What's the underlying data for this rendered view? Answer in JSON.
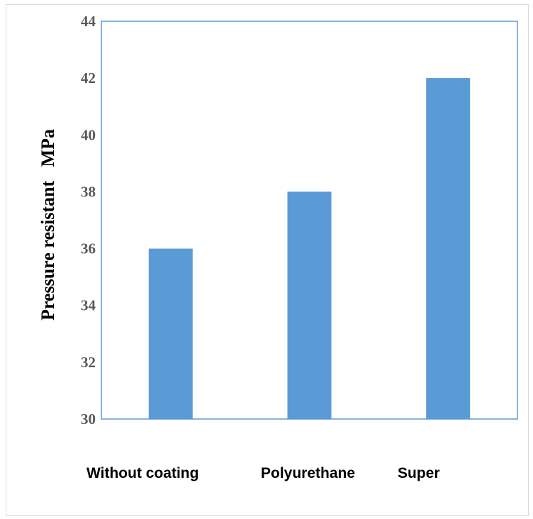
{
  "chart_data": {
    "type": "bar",
    "categories": [
      "Without coating",
      "Polyurethane",
      "Super"
    ],
    "values": [
      36,
      38,
      42
    ],
    "title": "",
    "xlabel": "",
    "ylabel": "Pressure resistant   MPa",
    "ylim": [
      30,
      44
    ],
    "yticks": [
      30,
      32,
      34,
      36,
      38,
      40,
      42,
      44
    ],
    "grid": false,
    "legend": "none",
    "bar_color": "#5b9bd5",
    "axis_color": "#5b9bd5"
  }
}
